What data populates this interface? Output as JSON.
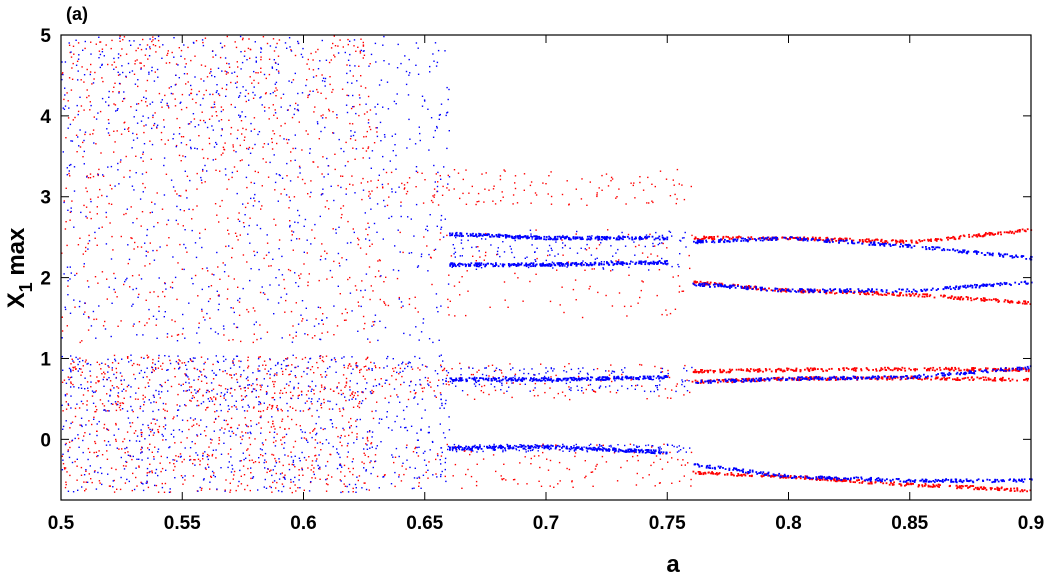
{
  "chart_data": {
    "type": "scatter",
    "panel_label": "(a)",
    "xlabel": "a",
    "ylabel_main": "X",
    "ylabel_sub": "1",
    "ylabel_suffix": " max",
    "xlim": [
      0.5,
      0.9
    ],
    "ylim": [
      -0.75,
      5.0
    ],
    "x_ticks": [
      0.5,
      0.55,
      0.6,
      0.65,
      0.7,
      0.75,
      0.8,
      0.85,
      0.9
    ],
    "x_tick_labels": [
      "0.5",
      "0.55",
      "0.6",
      "0.65",
      "0.7",
      "0.75",
      "0.8",
      "0.85",
      "0.9"
    ],
    "y_ticks": [
      0,
      1,
      2,
      3,
      4,
      5
    ],
    "y_tick_labels": [
      "0",
      "1",
      "2",
      "3",
      "4",
      "5"
    ],
    "grid": false,
    "legend": "none",
    "series": [
      {
        "color": "#ff0000",
        "chaotic_region": {
          "x_range": [
            0.5,
            0.63
          ],
          "y_bands": [
            [
              -0.65,
              0.3
            ],
            [
              0.35,
              1.05
            ],
            [
              1.2,
              3.6
            ],
            [
              3.6,
              5.0
            ]
          ]
        },
        "transition_region": {
          "x_range": [
            0.63,
            0.76
          ],
          "y_bands": [
            [
              -0.6,
              -0.05
            ],
            [
              0.5,
              0.95
            ],
            [
              1.5,
              2.6
            ],
            [
              2.9,
              3.35
            ]
          ]
        },
        "branches": [
          {
            "x": [
              0.76,
              0.8,
              0.85,
              0.9
            ],
            "y": [
              2.5,
              2.5,
              2.45,
              2.6
            ]
          },
          {
            "x": [
              0.76,
              0.8,
              0.85,
              0.9
            ],
            "y": [
              1.95,
              1.85,
              1.8,
              1.7
            ]
          },
          {
            "x": [
              0.76,
              0.8,
              0.85,
              0.9
            ],
            "y": [
              0.85,
              0.87,
              0.88,
              0.87
            ]
          },
          {
            "x": [
              0.76,
              0.8,
              0.85,
              0.9
            ],
            "y": [
              0.72,
              0.76,
              0.77,
              0.75
            ]
          },
          {
            "x": [
              0.76,
              0.8,
              0.85,
              0.9
            ],
            "y": [
              -0.4,
              -0.45,
              -0.55,
              -0.62
            ]
          }
        ]
      },
      {
        "color": "#0000ff",
        "chaotic_region": {
          "x_range": [
            0.5,
            0.66
          ],
          "y_bands": [
            [
              -0.65,
              0.3
            ],
            [
              0.35,
              1.05
            ],
            [
              1.2,
              3.6
            ],
            [
              3.6,
              5.0
            ]
          ]
        },
        "transition_region": {
          "x_range": [
            0.66,
            0.76
          ],
          "y_bands": [
            [
              -0.15,
              -0.05
            ],
            [
              0.6,
              0.9
            ],
            [
              2.1,
              2.6
            ]
          ]
        },
        "branches": [
          {
            "x": [
              0.66,
              0.7,
              0.75
            ],
            "y": [
              2.55,
              2.5,
              2.5
            ]
          },
          {
            "x": [
              0.66,
              0.7,
              0.75
            ],
            "y": [
              2.17,
              2.17,
              2.2
            ]
          },
          {
            "x": [
              0.66,
              0.7,
              0.75
            ],
            "y": [
              0.75,
              0.75,
              0.78
            ]
          },
          {
            "x": [
              0.66,
              0.7,
              0.75
            ],
            "y": [
              -0.1,
              -0.08,
              -0.15
            ]
          },
          {
            "x": [
              0.76,
              0.8,
              0.85,
              0.9
            ],
            "y": [
              2.45,
              2.5,
              2.4,
              2.25
            ]
          },
          {
            "x": [
              0.76,
              0.8,
              0.85,
              0.9
            ],
            "y": [
              1.93,
              1.85,
              1.85,
              1.95
            ]
          },
          {
            "x": [
              0.76,
              0.8,
              0.85,
              0.9
            ],
            "y": [
              0.72,
              0.76,
              0.78,
              0.9
            ]
          },
          {
            "x": [
              0.76,
              0.8,
              0.85,
              0.9
            ],
            "y": [
              -0.3,
              -0.45,
              -0.5,
              -0.5
            ]
          }
        ]
      }
    ]
  }
}
